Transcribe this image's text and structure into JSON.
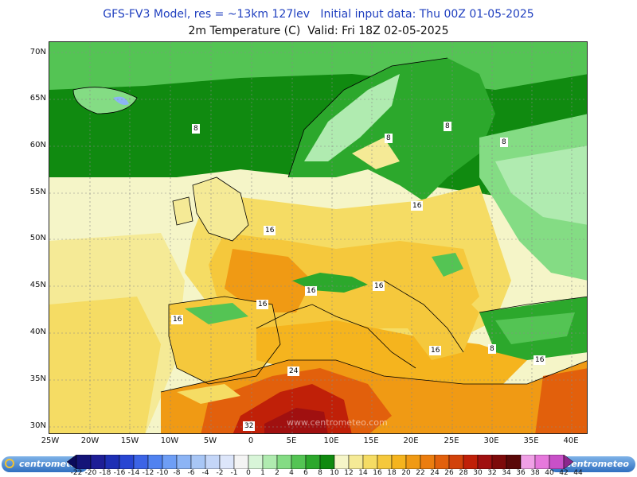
{
  "header": {
    "line1": "GFS-FV3 Model, res = ~13km 127lev   Initial input data: Thu 00Z 01-05-2025",
    "line2": "2m Temperature (C)  Valid: Fri 18Z 02-05-2025"
  },
  "map": {
    "lat_labels": [
      "70N",
      "65N",
      "60N",
      "55N",
      "50N",
      "45N",
      "40N",
      "35N",
      "30N"
    ],
    "lon_labels": [
      "25W",
      "20W",
      "15W",
      "10W",
      "5W",
      "0",
      "5E",
      "10E",
      "15E",
      "20E",
      "25E",
      "30E",
      "35E",
      "40E"
    ],
    "contour_labels": [
      "8",
      "8",
      "8",
      "8",
      "16",
      "16",
      "16",
      "16",
      "16",
      "16",
      "16",
      "8",
      "16",
      "24",
      "32"
    ],
    "watermark": "www.centrometeo.com"
  },
  "legend": {
    "ticks": [
      "-22",
      "-20",
      "-18",
      "-16",
      "-14",
      "-12",
      "-10",
      "-8",
      "-6",
      "-4",
      "-2",
      "-1",
      "0",
      "1",
      "2",
      "4",
      "6",
      "8",
      "10",
      "12",
      "14",
      "16",
      "18",
      "20",
      "22",
      "24",
      "26",
      "28",
      "30",
      "32",
      "34",
      "36",
      "38",
      "40",
      "42",
      "44"
    ],
    "colors": [
      "#0a0a5a",
      "#141478",
      "#1e1e96",
      "#1e2fb4",
      "#2846d2",
      "#3c64e6",
      "#5082f0",
      "#6e9ef5",
      "#8cb4f5",
      "#a8c6f5",
      "#c4d6f8",
      "#dde6fa",
      "#f4f4f4",
      "#d8f5d8",
      "#b0ebb0",
      "#84dc84",
      "#54c454",
      "#2ca82c",
      "#108a10",
      "#f5f5c8",
      "#f5ea96",
      "#f5dc64",
      "#f5c83c",
      "#f5b41e",
      "#f09a14",
      "#eb7d0f",
      "#e2600c",
      "#d2420a",
      "#c02008",
      "#a01010",
      "#7d0a0a",
      "#5a0808",
      "#f0a0e6",
      "#e678dc",
      "#c850c8",
      "#8c288c"
    ],
    "brand": "centrometeo"
  }
}
